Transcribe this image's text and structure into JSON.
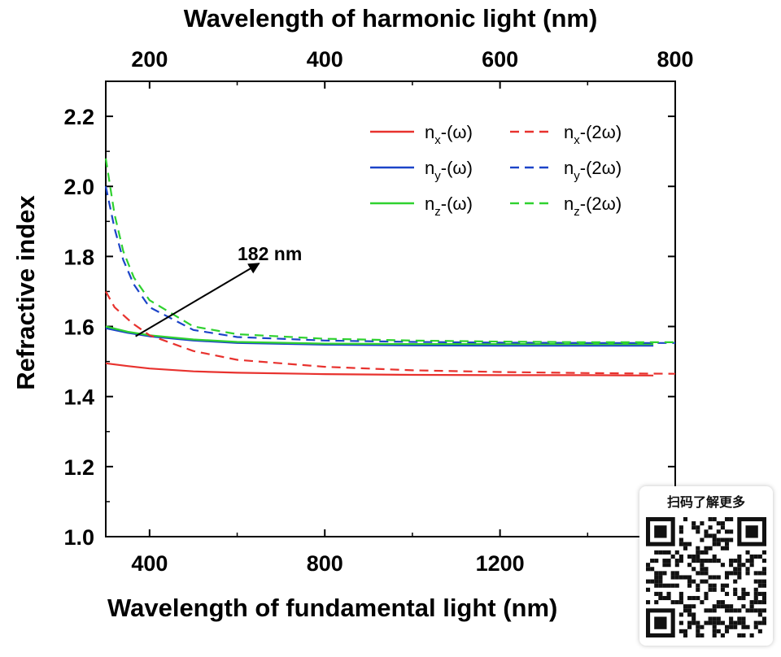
{
  "chart_data": {
    "type": "line",
    "top_axis": {
      "label": "Wavelength of harmonic light (nm)",
      "ticks": [
        200,
        400,
        600,
        800
      ],
      "range": [
        150,
        800
      ]
    },
    "xlabel": "Wavelength of fundamental light (nm)",
    "ylabel": "Refractive index",
    "xlim": [
      300,
      1600
    ],
    "ylim": [
      1.0,
      2.3
    ],
    "xticks": [
      400,
      800,
      1200
    ],
    "yticks": [
      1.0,
      1.2,
      1.4,
      1.6,
      1.8,
      2.0,
      2.2
    ],
    "grid": false,
    "legend_position": "top-right",
    "series": [
      {
        "name": "nx-(ω)",
        "sub": "x",
        "suffix": "-(ω)",
        "color": "#e8322e",
        "dash": "solid",
        "axis": "fundamental",
        "x": [
          300,
          350,
          400,
          500,
          600,
          800,
          1000,
          1200,
          1400,
          1550
        ],
        "y": [
          1.495,
          1.487,
          1.48,
          1.472,
          1.468,
          1.464,
          1.462,
          1.461,
          1.461,
          1.46
        ]
      },
      {
        "name": "ny-(ω)",
        "sub": "y",
        "suffix": "-(ω)",
        "color": "#1c44c8",
        "dash": "solid",
        "axis": "fundamental",
        "x": [
          300,
          350,
          400,
          500,
          600,
          800,
          1000,
          1200,
          1400,
          1550
        ],
        "y": [
          1.595,
          1.582,
          1.572,
          1.56,
          1.553,
          1.548,
          1.546,
          1.545,
          1.545,
          1.545
        ]
      },
      {
        "name": "nz-(ω)",
        "sub": "z",
        "suffix": "-(ω)",
        "color": "#2fd12f",
        "dash": "solid",
        "axis": "fundamental",
        "x": [
          300,
          350,
          400,
          500,
          600,
          800,
          1000,
          1200,
          1400,
          1550
        ],
        "y": [
          1.6,
          1.585,
          1.575,
          1.563,
          1.556,
          1.551,
          1.55,
          1.55,
          1.55,
          1.55
        ]
      },
      {
        "name": "nx-(2ω)",
        "sub": "x",
        "suffix": "-(2ω)",
        "color": "#e8322e",
        "dash": "dashed",
        "axis": "harmonic",
        "x": [
          150,
          160,
          180,
          200,
          250,
          300,
          400,
          500,
          600,
          700,
          800
        ],
        "y": [
          1.7,
          1.655,
          1.61,
          1.575,
          1.53,
          1.505,
          1.485,
          1.475,
          1.47,
          1.467,
          1.465
        ]
      },
      {
        "name": "ny-(2ω)",
        "sub": "y",
        "suffix": "-(2ω)",
        "color": "#1c44c8",
        "dash": "dashed",
        "axis": "harmonic",
        "x": [
          150,
          160,
          170,
          182,
          200,
          250,
          300,
          400,
          500,
          600,
          700,
          800
        ],
        "y": [
          2.0,
          1.88,
          1.79,
          1.72,
          1.655,
          1.59,
          1.57,
          1.56,
          1.556,
          1.554,
          1.553,
          1.553
        ]
      },
      {
        "name": "nz-(2ω)",
        "sub": "z",
        "suffix": "-(2ω)",
        "color": "#2fd12f",
        "dash": "dashed",
        "axis": "harmonic",
        "x": [
          150,
          160,
          170,
          182,
          200,
          250,
          300,
          400,
          500,
          600,
          700,
          800
        ],
        "y": [
          2.08,
          1.92,
          1.815,
          1.74,
          1.675,
          1.6,
          1.578,
          1.565,
          1.56,
          1.557,
          1.555,
          1.555
        ]
      }
    ],
    "annotation": {
      "text": "182 nm",
      "arrow_from": [
        368,
        1.572
      ],
      "arrow_to": [
        650,
        1.78
      ]
    }
  },
  "watermark": {
    "caption": "扫码了解更多",
    "qr_icon": "qr-code-icon"
  }
}
